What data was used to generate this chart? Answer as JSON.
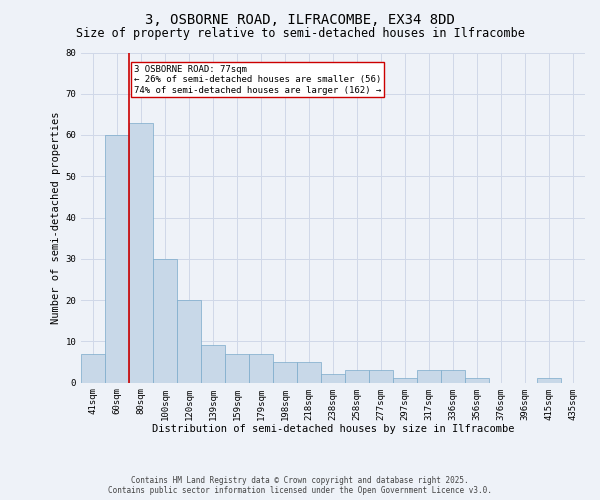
{
  "title1": "3, OSBORNE ROAD, ILFRACOMBE, EX34 8DD",
  "title2": "Size of property relative to semi-detached houses in Ilfracombe",
  "categories": [
    "41sqm",
    "60sqm",
    "80sqm",
    "100sqm",
    "120sqm",
    "139sqm",
    "159sqm",
    "179sqm",
    "198sqm",
    "218sqm",
    "238sqm",
    "258sqm",
    "277sqm",
    "297sqm",
    "317sqm",
    "336sqm",
    "356sqm",
    "376sqm",
    "396sqm",
    "415sqm",
    "435sqm"
  ],
  "values": [
    7,
    60,
    63,
    30,
    20,
    9,
    7,
    7,
    5,
    5,
    2,
    3,
    3,
    1,
    3,
    3,
    1,
    0,
    0,
    1,
    0
  ],
  "bar_color": "#c8d8e8",
  "bar_edge_color": "#7aaaca",
  "grid_color": "#d0d8e8",
  "background_color": "#eef2f8",
  "property_line_x": 1.5,
  "property_line_color": "#cc0000",
  "annotation_text": "3 OSBORNE ROAD: 77sqm\n← 26% of semi-detached houses are smaller (56)\n74% of semi-detached houses are larger (162) →",
  "annotation_box_color": "#ffffff",
  "annotation_box_edge": "#cc0000",
  "xlabel": "Distribution of semi-detached houses by size in Ilfracombe",
  "ylabel": "Number of semi-detached properties",
  "ylim": [
    0,
    80
  ],
  "yticks": [
    0,
    10,
    20,
    30,
    40,
    50,
    60,
    70,
    80
  ],
  "footer1": "Contains HM Land Registry data © Crown copyright and database right 2025.",
  "footer2": "Contains public sector information licensed under the Open Government Licence v3.0.",
  "title1_fontsize": 10,
  "title2_fontsize": 8.5,
  "axis_fontsize": 7.5,
  "tick_fontsize": 6.5,
  "annotation_fontsize": 6.5,
  "footer_fontsize": 5.5
}
